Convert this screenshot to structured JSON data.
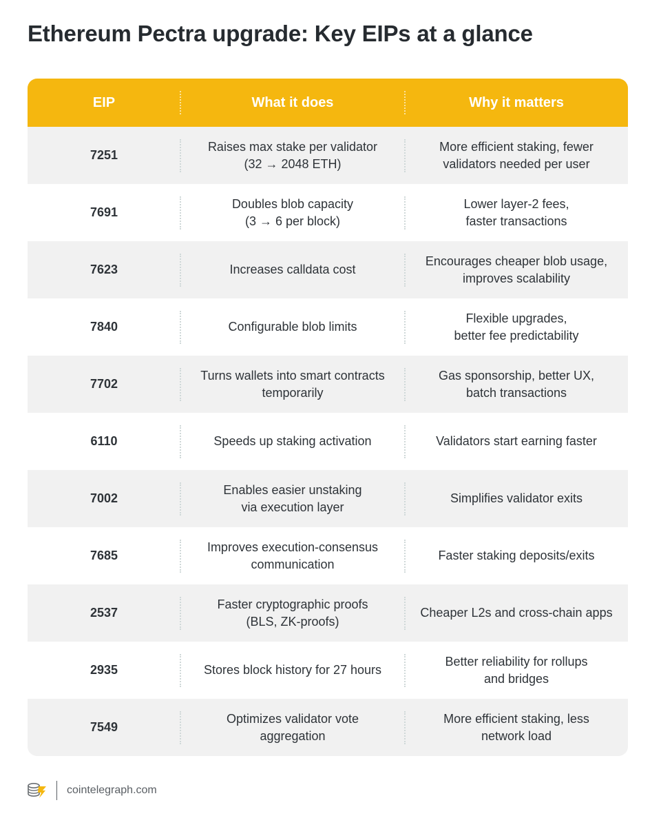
{
  "title": "Ethereum Pectra upgrade: Key EIPs at a glance",
  "table": {
    "headers": [
      "EIP",
      "What it does",
      "Why it matters"
    ],
    "rows": [
      {
        "eip": "7251",
        "what": "Raises max stake per validator\n(32 → 2048 ETH)",
        "why": "More efficient staking, fewer\nvalidators needed per user"
      },
      {
        "eip": "7691",
        "what": "Doubles blob capacity\n(3 → 6 per block)",
        "why": "Lower layer-2 fees,\nfaster transactions"
      },
      {
        "eip": "7623",
        "what": "Increases calldata cost",
        "why": "Encourages cheaper blob usage,\nimproves scalability"
      },
      {
        "eip": "7840",
        "what": "Configurable blob limits",
        "why": "Flexible upgrades,\nbetter fee predictability"
      },
      {
        "eip": "7702",
        "what": "Turns wallets into smart contracts\ntemporarily",
        "why": "Gas sponsorship, better UX,\nbatch transactions"
      },
      {
        "eip": "6110",
        "what": "Speeds up staking activation",
        "why": "Validators start earning faster"
      },
      {
        "eip": "7002",
        "what": "Enables easier unstaking\nvia execution layer",
        "why": "Simplifies validator exits"
      },
      {
        "eip": "7685",
        "what": "Improves execution-consensus\ncommunication",
        "why": "Faster staking deposits/exits"
      },
      {
        "eip": "2537",
        "what": "Faster cryptographic proofs\n(BLS, ZK-proofs)",
        "why": "Cheaper L2s and cross-chain apps"
      },
      {
        "eip": "2935",
        "what": "Stores block history for 27 hours",
        "why": "Better reliability for rollups\nand bridges"
      },
      {
        "eip": "7549",
        "what": "Optimizes validator vote\naggregation",
        "why": "More efficient staking, less\nnetwork load"
      }
    ]
  },
  "footer": {
    "logo_icon": "cointelegraph-logo-icon",
    "site": "cointelegraph.com"
  },
  "colors": {
    "header_bg": "#f5b70f",
    "row_shade": "#f1f1f1",
    "title": "#262b30"
  }
}
